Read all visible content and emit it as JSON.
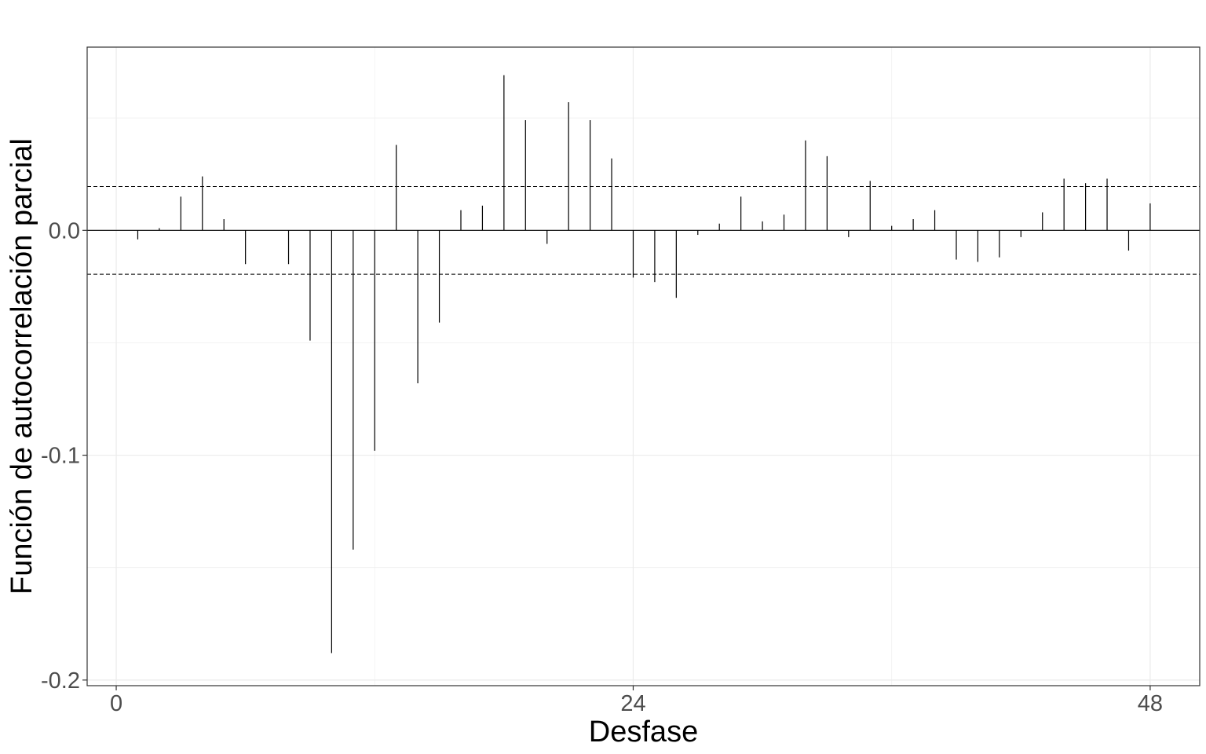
{
  "chart_data": {
    "type": "bar",
    "xlabel": "Desfase",
    "ylabel": "Función de autocorrelación parcial",
    "xlim": [
      -1.35,
      50.3
    ],
    "ylim": [
      -0.2025,
      0.0815
    ],
    "x_ticks": [
      0,
      24,
      48
    ],
    "x_tick_labels": [
      "0",
      "24",
      "48"
    ],
    "y_ticks": [
      -0.2,
      -0.1,
      0.0
    ],
    "y_tick_labels": [
      "-0.2",
      "-0.1",
      "0.0"
    ],
    "grid": true,
    "confidence_band": 0.0195,
    "series": [
      {
        "lags": [
          1,
          2,
          3,
          4,
          5,
          6,
          7,
          8,
          9,
          10,
          11,
          12,
          13,
          14,
          15,
          16,
          17,
          18,
          19,
          20,
          21,
          22,
          23,
          24,
          25,
          26,
          27,
          28,
          29,
          30,
          31,
          32,
          33,
          34,
          35,
          36,
          37,
          38,
          39,
          40,
          41,
          42,
          43,
          44,
          45,
          46,
          47,
          48
        ],
        "values": [
          -0.004,
          0.001,
          0.015,
          0.024,
          0.005,
          -0.015,
          0.0,
          -0.015,
          -0.049,
          -0.188,
          -0.142,
          -0.098,
          0.038,
          -0.068,
          -0.041,
          0.009,
          0.011,
          0.069,
          0.049,
          -0.006,
          0.057,
          0.049,
          0.032,
          -0.021,
          -0.023,
          -0.03,
          -0.002,
          0.003,
          0.015,
          0.004,
          0.007,
          0.04,
          0.033,
          -0.003,
          0.022,
          0.002,
          0.005,
          0.009,
          -0.013,
          -0.014,
          -0.012,
          -0.003,
          0.008,
          0.023,
          0.021,
          0.023,
          -0.009,
          0.012
        ]
      }
    ]
  }
}
